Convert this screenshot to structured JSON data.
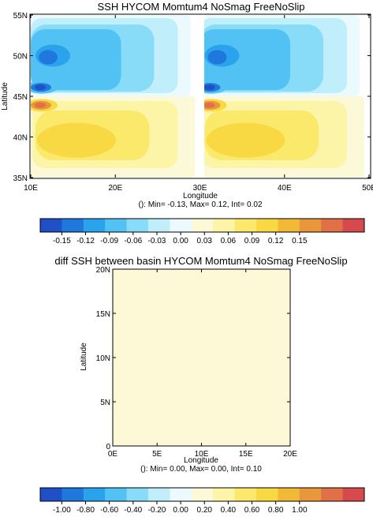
{
  "chart_data": [
    {
      "type": "heatmap",
      "title": "SSH HYCOM Momtum4 NoSmag FreeNoSlip",
      "xlabel": "Longitude",
      "ylabel": "Latitude",
      "xlim": [
        10,
        50
      ],
      "ylim": [
        35,
        55
      ],
      "x_ticks": [
        "10E",
        "20E",
        "30E",
        "40E",
        "50E"
      ],
      "y_ticks": [
        "35N",
        "40N",
        "45N",
        "50N",
        "55N"
      ],
      "stats": "(): Min= -0.13, Max= 0.12, Int= 0.02",
      "min": -0.13,
      "max": 0.12,
      "interval": 0.02,
      "basins": [
        {
          "lon_range": [
            10,
            30
          ],
          "lat_range": [
            35,
            55
          ]
        },
        {
          "lon_range": [
            30,
            50
          ],
          "lat_range": [
            35,
            55
          ]
        }
      ],
      "features": [
        {
          "kind": "negative gyre",
          "center_lon": 17,
          "center_lat": 50.5,
          "min_value": -0.08
        },
        {
          "kind": "positive gyre",
          "center_lon": 18,
          "center_lat": 39.5,
          "max_value": 0.06
        },
        {
          "kind": "western boundary low",
          "center_lon": 12,
          "center_lat": 46,
          "value": -0.13
        },
        {
          "kind": "western boundary high",
          "center_lon": 12,
          "center_lat": 44,
          "value": 0.12
        }
      ],
      "colorbar": {
        "labels": [
          "-0.15",
          "-0.12",
          "-0.09",
          "-0.06",
          "-0.03",
          "0.00",
          "0.03",
          "0.06",
          "0.09",
          "0.12",
          "0.15"
        ]
      }
    },
    {
      "type": "heatmap",
      "title": "diff SSH between basin HYCOM Momtum4 NoSmag FreeNoSlip",
      "xlabel": "Longitude",
      "ylabel": "Latitude",
      "xlim": [
        0,
        20
      ],
      "ylim": [
        0,
        20
      ],
      "x_ticks": [
        "0E",
        "5E",
        "10E",
        "15E",
        "20E"
      ],
      "y_ticks": [
        "0",
        "5N",
        "10N",
        "15N",
        "20N"
      ],
      "stats": "(): Min= 0.00, Max= 0.00, Int= 0.10",
      "min": 0.0,
      "max": 0.0,
      "interval": 0.1,
      "fill_value": 0.0,
      "colorbar": {
        "labels": [
          "-1.00",
          "-0.80",
          "-0.60",
          "-0.40",
          "-0.20",
          "0.00",
          "0.20",
          "0.40",
          "0.60",
          "0.80",
          "1.00"
        ]
      }
    }
  ],
  "palette": [
    "#1f50c8",
    "#1f78dc",
    "#2ba2ec",
    "#52c2f4",
    "#88dcf8",
    "#c0eefb",
    "#eafaff",
    "#fcf9d8",
    "#fcf4a6",
    "#fbe96c",
    "#f8d943",
    "#f1b936",
    "#e8973a",
    "#e07045",
    "#d64a4e"
  ],
  "zero_color": "#fdf9d7"
}
